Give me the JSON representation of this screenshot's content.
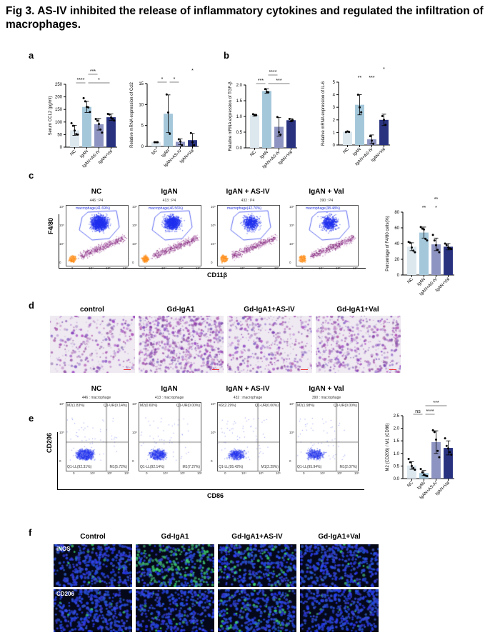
{
  "figure_title": "Fig 3. AS-IV inhibited the release of inflammatory cytokines and regulated the infiltration of macrophages.",
  "panel_labels": {
    "a": "a",
    "b": "b",
    "c": "c",
    "d": "d",
    "e": "e",
    "f": "f"
  },
  "colors": {
    "NC": "#dce7ee",
    "IgAN": "#a4c7da",
    "IgAN+AS-IV": "#8e94c1",
    "IgAN+Val": "#28327f",
    "gate": "#2233dd"
  },
  "chart_data": [
    {
      "id": "ccl2-serum",
      "type": "bar",
      "panel": "a",
      "ylabel": "Serum CCL2 (pg/ml)",
      "categories": [
        "NC",
        "IgAN",
        "IgAN+AS-IV",
        "IgAN+Val"
      ],
      "values": [
        67,
        160,
        91,
        119
      ],
      "sd": [
        20,
        22,
        23,
        13
      ],
      "ylim": [
        0,
        250
      ],
      "yticks": [
        "0",
        "50",
        "100",
        "150",
        "200",
        "250"
      ],
      "points": [
        [
          95,
          85,
          66,
          52,
          50
        ],
        [
          195,
          182,
          160,
          158,
          140
        ],
        [
          112,
          105,
          92,
          70,
          58
        ],
        [
          132,
          130,
          118,
          113,
          106
        ]
      ],
      "significance": [
        {
          "label": "****",
          "from": 0,
          "to": 1,
          "tier": 0
        },
        {
          "label": "*",
          "from": 1,
          "to": 3,
          "tier": 0
        },
        {
          "label": "***",
          "from": 1,
          "to": 2,
          "tier": 1
        }
      ]
    },
    {
      "id": "ccl2-mrna",
      "type": "bar",
      "panel": "a",
      "ylabel": "Relative mRNA expression of Ccl2",
      "categories": [
        "NC",
        "IgAN",
        "IgAN+AS-IV",
        "IgAN+Val"
      ],
      "values": [
        1,
        7.8,
        1.1,
        1.5
      ],
      "sd": [
        0.05,
        4.5,
        0.7,
        1.6
      ],
      "ylim": [
        0,
        15
      ],
      "yticks": [
        "0",
        "5",
        "10",
        "15"
      ],
      "points": [
        [
          1,
          1,
          1
        ],
        [
          12.4,
          8.1,
          3.0
        ],
        [
          1.7,
          1.2,
          0.3
        ],
        [
          3.2,
          1.0,
          0.3
        ]
      ],
      "significance": [
        {
          "label": "*",
          "from": 0,
          "to": 1,
          "tier": 0
        },
        {
          "label": "*",
          "from": 1,
          "to": 2,
          "tier": 0
        },
        {
          "label": "*",
          "from": 3,
          "to": 3,
          "tier": 1
        }
      ]
    },
    {
      "id": "tgfb-mrna",
      "type": "bar",
      "panel": "b",
      "ylabel": "Relative mRNA expression of TGF-β",
      "categories": [
        "NC",
        "IgAN",
        "IgAN+AS-IV",
        "IgAN+Val"
      ],
      "values": [
        1.04,
        1.81,
        0.67,
        0.88
      ],
      "sd": [
        0.03,
        0.07,
        0.3,
        0.05
      ],
      "ylim": [
        0,
        2.0
      ],
      "yticks": [
        "0.0",
        "0.5",
        "1.0",
        "1.5",
        "2.0"
      ],
      "points": [
        [
          1.07,
          1.03,
          1.04
        ],
        [
          1.87,
          1.78,
          1.77
        ],
        [
          0.98,
          0.5,
          0.42
        ],
        [
          0.92,
          0.85,
          0.88
        ]
      ],
      "significance": [
        {
          "label": "***",
          "from": 0,
          "to": 1,
          "tier": 0
        },
        {
          "label": "***",
          "from": 1,
          "to": 3,
          "tier": 0
        },
        {
          "label": "****",
          "from": 1,
          "to": 2,
          "tier": 1
        }
      ]
    },
    {
      "id": "il6-mrna",
      "type": "bar",
      "panel": "b",
      "ylabel": "Relative mRNA expression of IL-6",
      "categories": [
        "NC",
        "IgAN",
        "IgAN+AS-IV",
        "IgAN+Val"
      ],
      "values": [
        1.05,
        3.2,
        0.45,
        2.0
      ],
      "sd": [
        0.03,
        0.8,
        0.35,
        0.45
      ],
      "ylim": [
        0,
        5
      ],
      "yticks": [
        "0",
        "1",
        "2",
        "3",
        "4",
        "5"
      ],
      "points": [
        [
          1.02,
          1.08,
          1.04
        ],
        [
          4.0,
          3.0,
          2.6
        ],
        [
          0.7,
          0.35,
          0.1
        ],
        [
          2.3,
          2.0,
          1.6
        ]
      ],
      "significance": [
        {
          "label": "**",
          "from": 1,
          "to": 1,
          "tier": 0
        },
        {
          "label": "***",
          "from": 2,
          "to": 2,
          "tier": 0
        },
        {
          "label": "*",
          "from": 3,
          "to": 3,
          "tier": 1
        }
      ]
    },
    {
      "id": "f480-percentage",
      "type": "bar",
      "panel": "c",
      "ylabel": "Percentage of F4/80 cells(%)",
      "categories": [
        "NC",
        "IgAN",
        "IgAN+AS-IV",
        "IgAN+Val"
      ],
      "values": [
        36,
        54,
        39,
        36
      ],
      "sd": [
        5,
        7,
        8,
        4
      ],
      "ylim": [
        0,
        80
      ],
      "yticks": [
        "0",
        "20",
        "40",
        "60",
        "80"
      ],
      "points": [
        [
          42,
          41,
          35,
          31,
          29
        ],
        [
          61,
          59,
          58,
          46,
          44
        ],
        [
          51,
          44,
          38,
          32,
          29
        ],
        [
          40,
          38,
          35,
          34,
          33
        ]
      ],
      "significance": [
        {
          "label": "**",
          "from": 1,
          "to": 1,
          "tier": 0
        },
        {
          "label": "*",
          "from": 2,
          "to": 2,
          "tier": 0
        },
        {
          "label": "**",
          "from": 2,
          "to": 2,
          "tier": 1
        }
      ]
    },
    {
      "id": "m2-m1-ratio",
      "type": "bar",
      "panel": "e",
      "ylabel": "M2 (CD206) / M1 (CD86)",
      "categories": [
        "NC",
        "IgAN",
        "IgAN+AS-IV",
        "IgAN+Val"
      ],
      "values": [
        0.52,
        0.22,
        1.45,
        1.22
      ],
      "sd": [
        0.15,
        0.1,
        0.45,
        0.28
      ],
      "ylim": [
        0,
        2.5
      ],
      "yticks": [
        "0.0",
        "0.5",
        "1.0",
        "1.5",
        "2.0",
        "2.5"
      ],
      "points": [
        [
          0.78,
          0.65,
          0.5,
          0.42,
          0.35
        ],
        [
          0.38,
          0.25,
          0.15,
          0.12,
          0.1
        ],
        [
          1.92,
          1.85,
          1.55,
          1.1,
          0.85
        ],
        [
          1.6,
          1.3,
          1.2,
          1.05,
          0.95
        ]
      ],
      "significance": [
        {
          "label": "ns",
          "from": 0,
          "to": 1,
          "tier": 0
        },
        {
          "label": "****",
          "from": 1,
          "to": 2,
          "tier": 0
        },
        {
          "label": "***",
          "from": 1,
          "to": 3,
          "tier": 1
        }
      ]
    }
  ],
  "panel_c": {
    "y_axis": "F4/80",
    "x_axis": "CD11β",
    "plots": [
      {
        "title": "NC",
        "events": "446 : P4",
        "gate": "macrophage(41.69%)"
      },
      {
        "title": "IgAN",
        "events": "413 : P4",
        "gate": "macrophage(46.56%)"
      },
      {
        "title": "IgAN + AS-IV",
        "events": "432 : P4",
        "gate": "macrophage(42.70%)"
      },
      {
        "title": "IgAN + Val",
        "events": "390 : P4",
        "gate": "macrophage(38.48%)"
      }
    ],
    "ticks": {
      "y": [
        "10⁶",
        "10⁵",
        "10⁴",
        "0"
      ],
      "x": [
        "0",
        "10⁴",
        "10⁵",
        "10⁶"
      ]
    }
  },
  "panel_d": {
    "titles": [
      "control",
      "Gd-IgA1",
      "Gd-IgA1+AS-IV",
      "Gd-IgA1+Val"
    ]
  },
  "panel_e": {
    "y_axis": "CD206",
    "x_axis": "CD86",
    "plots": [
      {
        "title": "NC",
        "events": "446 : macrophage",
        "ul": "M2(1.83%)",
        "ur": "Q1-UR(0.14%)",
        "ll": "Q1-LL(92.31%)",
        "lr": "M1(5.72%)"
      },
      {
        "title": "IgAN",
        "events": "413 : macrophage",
        "ul": "M2(0.60%)",
        "ur": "Q1-UR(0.00%)",
        "ll": "Q1-LL(92.14%)",
        "lr": "M1(7.27%)"
      },
      {
        "title": "IgAN + AS-IV",
        "events": "432 : macrophage",
        "ul": "M2(2.29%)",
        "ur": "Q1-UR(0.00%)",
        "ll": "Q1-LL(95.42%)",
        "lr": "M1(2.29%)"
      },
      {
        "title": "IgAN + Val",
        "events": "390 : macrophage",
        "ul": "M2(1.98%)",
        "ur": "Q1-UR(0.00%)",
        "ll": "Q1-LL(95.94%)",
        "lr": "M1(2.07%)"
      }
    ],
    "ticks": {
      "y": [
        "10⁶",
        "10⁵",
        "0"
      ],
      "x": [
        "0",
        "10⁴",
        "10⁵",
        "10⁶"
      ]
    }
  },
  "panel_f": {
    "titles": [
      "Control",
      "Gd-IgA1",
      "Gd-IgA1+AS-IV",
      "Gd-IgA1+Val"
    ],
    "rows": [
      "iNOS",
      "CD206"
    ]
  }
}
